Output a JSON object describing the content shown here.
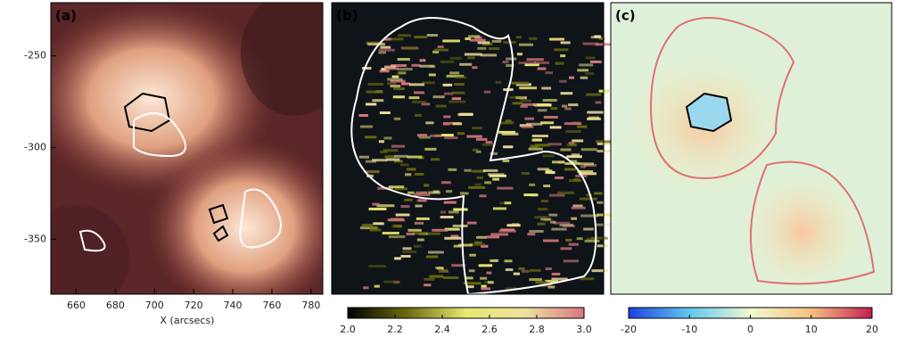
{
  "chart_data": [
    {
      "type": "image",
      "panel_label": "(a)",
      "xlabel": "X (arcsecs)",
      "xlim": [
        647,
        786
      ],
      "ylim": [
        -380,
        -221
      ],
      "xticks": [
        660,
        680,
        700,
        720,
        740,
        760,
        780
      ],
      "yticks": [
        -250,
        -300,
        -350
      ],
      "colors": [
        "#3a1a1c",
        "#8a3c3a",
        "#d8866c",
        "#fde8d6"
      ]
    },
    {
      "type": "image",
      "panel_label": "(b)",
      "colorbar_lim": [
        2,
        3
      ],
      "colorbar_ticks": [
        {
          "value": 2,
          "label": "2.0"
        },
        2.2,
        2.4,
        2.6,
        2.8,
        {
          "value": 3,
          "label": "3.0"
        }
      ],
      "colors": [
        "#000000",
        "#6b6a10",
        "#e8e870",
        "#f0e0a0",
        "#d87880"
      ]
    },
    {
      "type": "image",
      "panel_label": "(c)",
      "colorbar_lim": [
        -20,
        20
      ],
      "colorbar_ticks": [
        -20,
        -10,
        0,
        10,
        20
      ],
      "colors": [
        "#2040e0",
        "#60c8f0",
        "#f0f8d0",
        "#f8c080",
        "#c02050"
      ]
    }
  ]
}
